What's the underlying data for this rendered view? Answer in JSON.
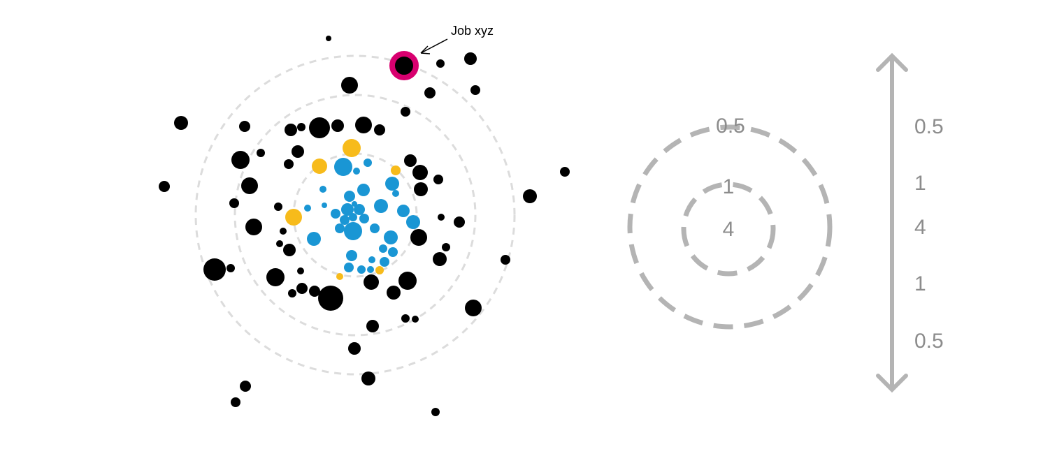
{
  "annotation": {
    "label": "Job xyz"
  },
  "legend": {
    "outer_ring_label": "0.5",
    "inner_ring_label": "1",
    "center_label": "4"
  },
  "scale": {
    "labels": [
      "0.5",
      "1",
      "4",
      "1",
      "0.5"
    ]
  },
  "colors": {
    "black": "#000000",
    "blue": "#1a96d4",
    "yellow": "#f7bb1b",
    "highlight": "#d8006f",
    "ring": "#dcdcdc",
    "legend": "#b4b4b4",
    "legend_text": "#8c8c8c"
  }
}
